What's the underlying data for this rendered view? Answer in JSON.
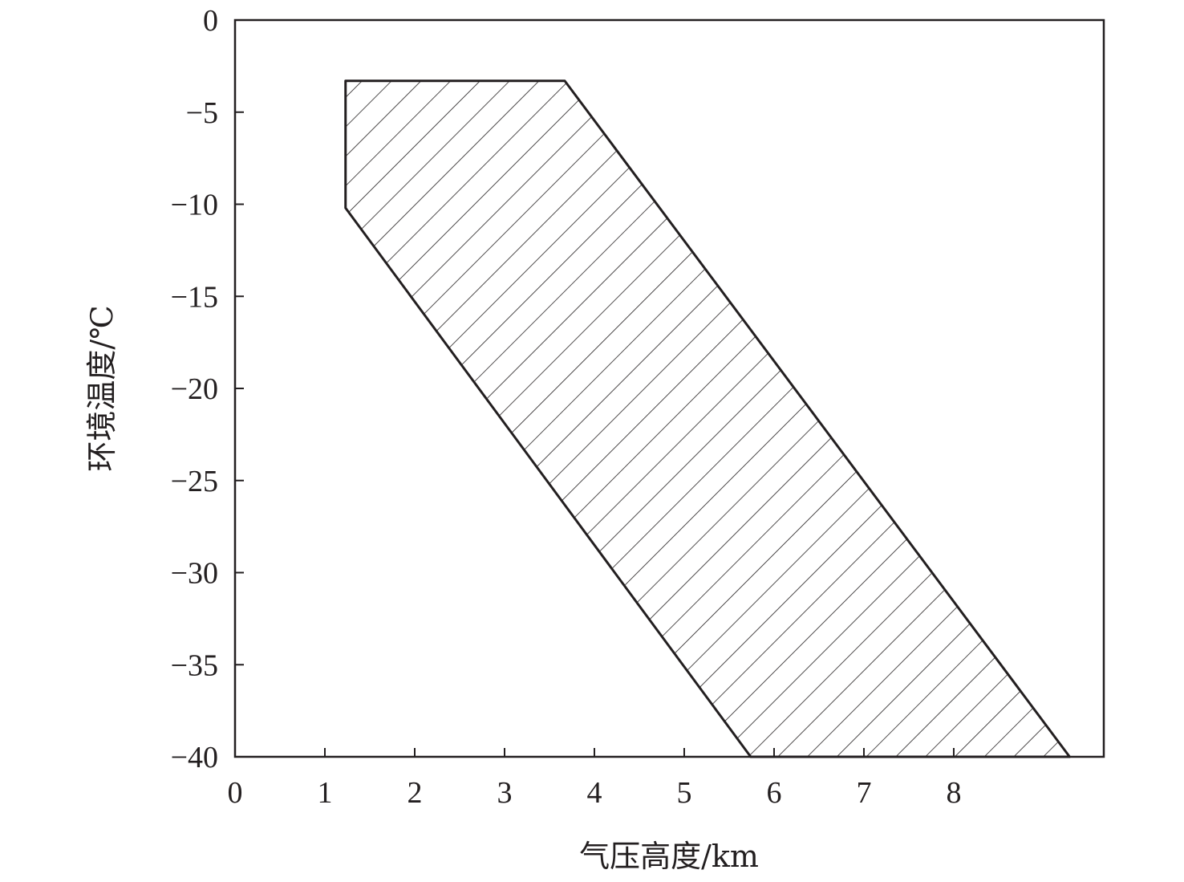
{
  "chart_data": {
    "type": "area",
    "title": "",
    "xlabel": "气压高度/km",
    "ylabel": "环境温度/℃",
    "xlim": [
      0,
      9.67
    ],
    "ylim": [
      -40,
      0
    ],
    "xticks": [
      0,
      1,
      2,
      3,
      4,
      5,
      6,
      7,
      8
    ],
    "yticks": [
      0,
      -5,
      -10,
      -15,
      -20,
      -25,
      -30,
      -35,
      -40
    ],
    "xtick_labels": [
      "0",
      "1",
      "2",
      "3",
      "4",
      "5",
      "6",
      "7",
      "8"
    ],
    "ytick_labels": [
      "0",
      "−5",
      "−10",
      "−15",
      "−20",
      "−25",
      "−30",
      "−35",
      "−40"
    ],
    "grid": false,
    "region": {
      "fill": "diagonal-hatch",
      "vertices": [
        {
          "x": 1.23,
          "y": -3.3
        },
        {
          "x": 3.67,
          "y": -3.3
        },
        {
          "x": 9.29,
          "y": -40
        },
        {
          "x": 5.74,
          "y": -40
        },
        {
          "x": 1.23,
          "y": -10.2
        }
      ]
    },
    "colors": {
      "line": "#231f20",
      "background": "#ffffff"
    }
  }
}
